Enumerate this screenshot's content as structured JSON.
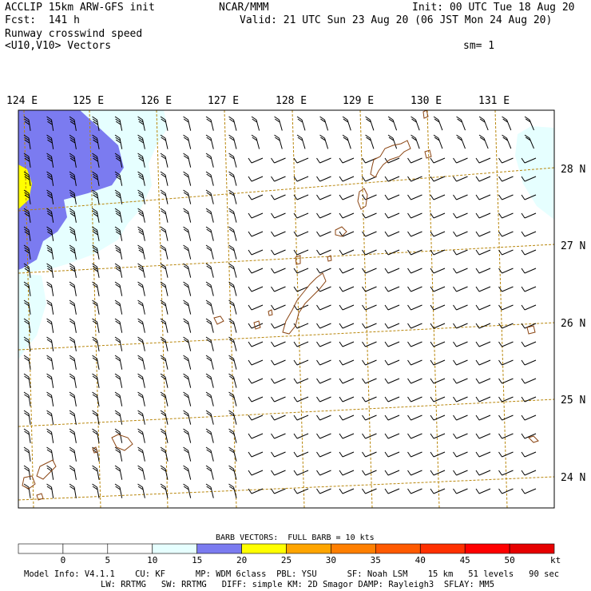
{
  "header": {
    "model_title": "ACCLIP 15km ARW-GFS init",
    "org": "NCAR/MMM",
    "init": "Init: 00 UTC Tue 18 Aug 20",
    "fcst": "Fcst:  141 h",
    "valid": "Valid: 21 UTC Sun 23 Aug 20 (06 JST Mon 24 Aug 20)",
    "field": "Runway crosswind speed",
    "vectors": "<U10,V10> Vectors",
    "smoothing": "sm= 1"
  },
  "map": {
    "longitude_labels": [
      "124 E",
      "125 E",
      "126 E",
      "127 E",
      "128 E",
      "129 E",
      "130 E",
      "131 E"
    ],
    "latitude_labels": [
      "28 N",
      "27 N",
      "26 N",
      "25 N",
      "24 N"
    ],
    "colors": {
      "land_outline": "#8b4513",
      "grid": "#b8860b",
      "shade_10_15": "#e6ffff",
      "shade_15_20": "#7b7bf0",
      "shade_20_25": "#ffff00"
    }
  },
  "colorbar": {
    "caption": "BARB VECTORS:  FULL BARB = 10 kts",
    "tick_labels": [
      "0",
      "5",
      "10",
      "15",
      "20",
      "25",
      "30",
      "35",
      "40",
      "45",
      "50"
    ],
    "unit": "kt",
    "segment_colors": [
      "#ffffff",
      "#ffffff",
      "#ffffff",
      "#e6ffff",
      "#7b7bf0",
      "#ffff00",
      "#ffa500",
      "#ff7f00",
      "#ff5a00",
      "#ff3000",
      "#ff0000",
      "#e60000"
    ]
  },
  "footer": {
    "line1": "Model Info: V4.1.1    CU: KF      MP: WDM 6class  PBL: YSU      SF: Noah LSM    15 km   51 levels   90 sec",
    "line2": "LW: RRTMG   SW: RRTMG   DIFF: simple KM: 2D Smagor DAMP: Rayleigh3  SFLAY: MM5"
  }
}
